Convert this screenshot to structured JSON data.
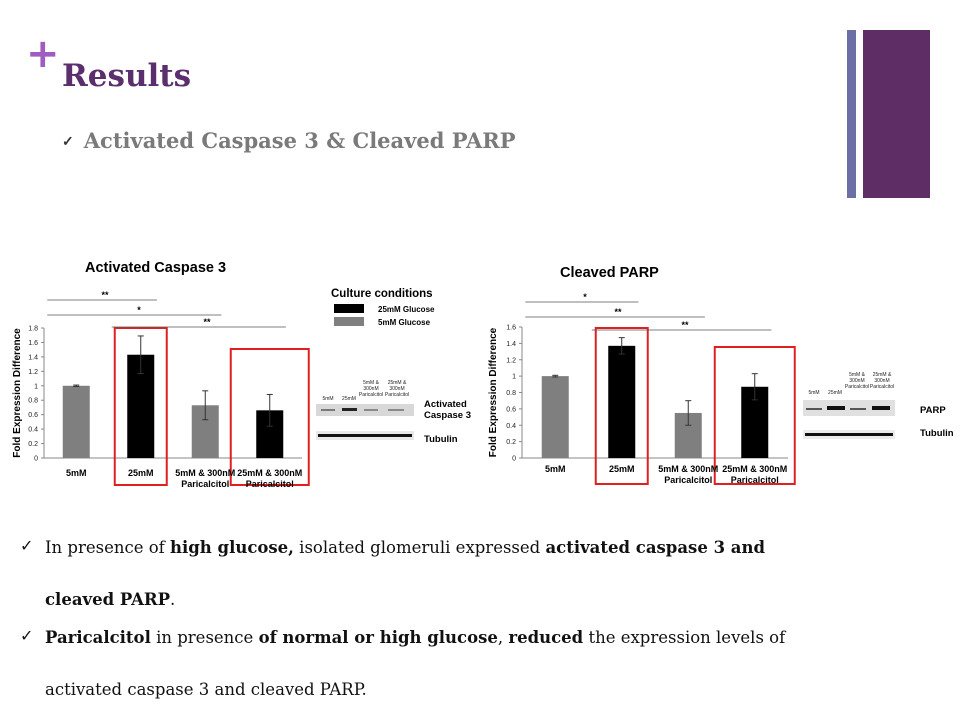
{
  "slide": {
    "plus_glyph": "+",
    "title": "Results",
    "subtitle_check": "✓",
    "subtitle": "Activated Caspase 3 & Cleaved PARP",
    "accent_colors": {
      "plus": "#a05cc0",
      "title": "#5b2f6e",
      "bar_thin": "#6c6fa6",
      "bar_thick": "#5e2d65",
      "highlight_box": "#e02020"
    }
  },
  "legend": {
    "title": "Culture conditions",
    "items": [
      {
        "label": "25mM Glucose",
        "color": "#000000"
      },
      {
        "label": "5mM Glucose",
        "color": "#7f7f7f"
      }
    ]
  },
  "blots": {
    "left": {
      "lanes": [
        "5mM",
        "25mM",
        "5mM & 300nM Paricalcitol",
        "25mM & 300nM Paricalcitol"
      ],
      "row1_label_line1": "Activated",
      "row1_label_line2": "Caspase 3",
      "row2_label": "Tubulin"
    },
    "right": {
      "lanes": [
        "5mM",
        "25mM",
        "5mM & 300nM Paricalcitol",
        "25mM & 300nM Paricalcitol"
      ],
      "row1_label": "PARP",
      "row2_label": "Tubulin"
    }
  },
  "chart_data": [
    {
      "type": "bar",
      "title": "Activated Caspase 3",
      "ylabel": "Fold Expression Difference",
      "ylim": [
        0,
        1.8
      ],
      "yticks": [
        "0",
        "0.2",
        "0.4",
        "0.6",
        "0.8",
        "1",
        "1.2",
        "1.4",
        "1.6",
        "1.8"
      ],
      "categories": [
        "5mM",
        "25mM",
        "5mM & 300nM Paricalcitol",
        "25mM & 300nM Paricalcitol"
      ],
      "category_lines": [
        [
          "5mM"
        ],
        [
          "25mM"
        ],
        [
          "5mM & 300nM",
          "Paricalcitol"
        ],
        [
          "25mM & 300nM",
          "Paricalcitol"
        ]
      ],
      "values": [
        1.0,
        1.43,
        0.73,
        0.66
      ],
      "errors": [
        0.01,
        0.26,
        0.2,
        0.22
      ],
      "bar_colors": [
        "#7f7f7f",
        "#000000",
        "#7f7f7f",
        "#000000"
      ],
      "highlighted": [
        1,
        3
      ],
      "significance": [
        {
          "label": "**",
          "from": 0,
          "to": 1
        },
        {
          "label": "*",
          "from": 0,
          "to": 2
        },
        {
          "label": "**",
          "from": 1,
          "to": 3
        }
      ]
    },
    {
      "type": "bar",
      "title": "Cleaved  PARP",
      "ylabel": "Fold Expression Difference",
      "ylim": [
        0,
        1.6
      ],
      "yticks": [
        "0",
        "0.2",
        "0.4",
        "0.6",
        "0.8",
        "1",
        "1.2",
        "1.4",
        "1.6"
      ],
      "categories": [
        "5mM",
        "25mM",
        "5mM & 300nM Paricalcitol",
        "25mM & 300nM Paricalcitol"
      ],
      "category_lines": [
        [
          "5mM"
        ],
        [
          "25mM"
        ],
        [
          "5mM & 300nM",
          "Paricalcitol"
        ],
        [
          "25mM & 300nM",
          "Paricalcitol"
        ]
      ],
      "values": [
        1.0,
        1.37,
        0.55,
        0.87
      ],
      "errors": [
        0.01,
        0.1,
        0.15,
        0.16
      ],
      "bar_colors": [
        "#7f7f7f",
        "#000000",
        "#7f7f7f",
        "#000000"
      ],
      "highlighted": [
        1,
        3
      ],
      "significance": [
        {
          "label": "*",
          "from": 0,
          "to": 1
        },
        {
          "label": "**",
          "from": 0,
          "to": 2
        },
        {
          "label": "**",
          "from": 1,
          "to": 3
        }
      ]
    }
  ],
  "bullets": [
    {
      "check": "✓",
      "line1": [
        {
          "t": "In presence of ",
          "b": false
        },
        {
          "t": "high glucose,",
          "b": true
        },
        {
          "t": " isolated glomeruli expressed ",
          "b": false
        },
        {
          "t": "activated caspase 3 and",
          "b": true
        }
      ],
      "line2": [
        {
          "t": "cleaved PARP",
          "b": true
        },
        {
          "t": ".",
          "b": false
        }
      ]
    },
    {
      "check": "✓",
      "line1": [
        {
          "t": "Paricalcitol",
          "b": true
        },
        {
          "t": " in presence ",
          "b": false
        },
        {
          "t": "of normal or high glucose",
          "b": true
        },
        {
          "t": ", ",
          "b": false
        },
        {
          "t": "reduced",
          "b": true
        },
        {
          "t": " the expression levels of",
          "b": false
        }
      ],
      "line2": [
        {
          "t": "activated caspase 3 and cleaved PARP.",
          "b": false
        }
      ]
    }
  ]
}
